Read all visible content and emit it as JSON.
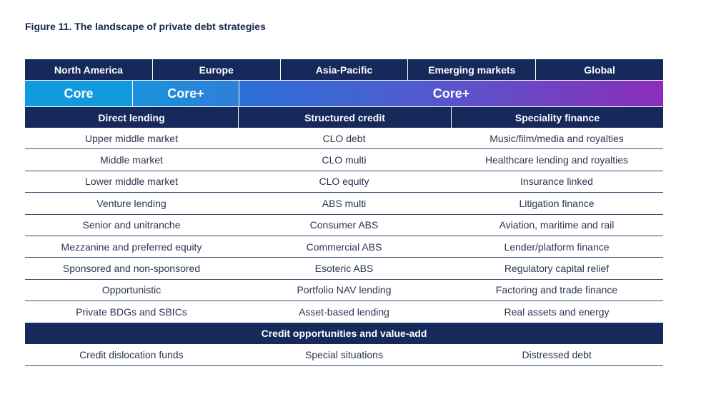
{
  "title": "Figure 11. The landscape of private debt strategies",
  "regions": [
    "North America",
    "Europe",
    "Asia-Pacific",
    "Emerging markets",
    "Global"
  ],
  "risk_bands": [
    "Core",
    "Core+",
    "Core+"
  ],
  "categories": [
    "Direct lending",
    "Structured credit",
    "Speciality finance"
  ],
  "rows": [
    [
      "Upper middle market",
      "CLO debt",
      "Music/film/media and royalties"
    ],
    [
      "Middle market",
      "CLO multi",
      "Healthcare lending and royalties"
    ],
    [
      "Lower middle market",
      "CLO equity",
      "Insurance linked"
    ],
    [
      "Venture lending",
      "ABS multi",
      "Litigation finance"
    ],
    [
      "Senior and unitranche",
      "Consumer ABS",
      "Aviation, maritime and rail"
    ],
    [
      "Mezzanine and preferred equity",
      "Commercial ABS",
      "Lender/platform finance"
    ],
    [
      "Sponsored and non-sponsored",
      "Esoteric ABS",
      "Regulatory capital relief"
    ],
    [
      "Opportunistic",
      "Portfolio NAV lending",
      "Factoring and trade finance"
    ],
    [
      "Private BDGs and SBICs",
      "Asset-based lending",
      "Real assets and energy"
    ]
  ],
  "opportunities": {
    "header": "Credit opportunities and value-add",
    "items": [
      "Credit dislocation funds",
      "Special situations",
      "Distressed debt"
    ]
  },
  "colors": {
    "navy": "#15295a",
    "core_blue": "#1399de",
    "gradient_end_purple": "#8b2dbb"
  }
}
